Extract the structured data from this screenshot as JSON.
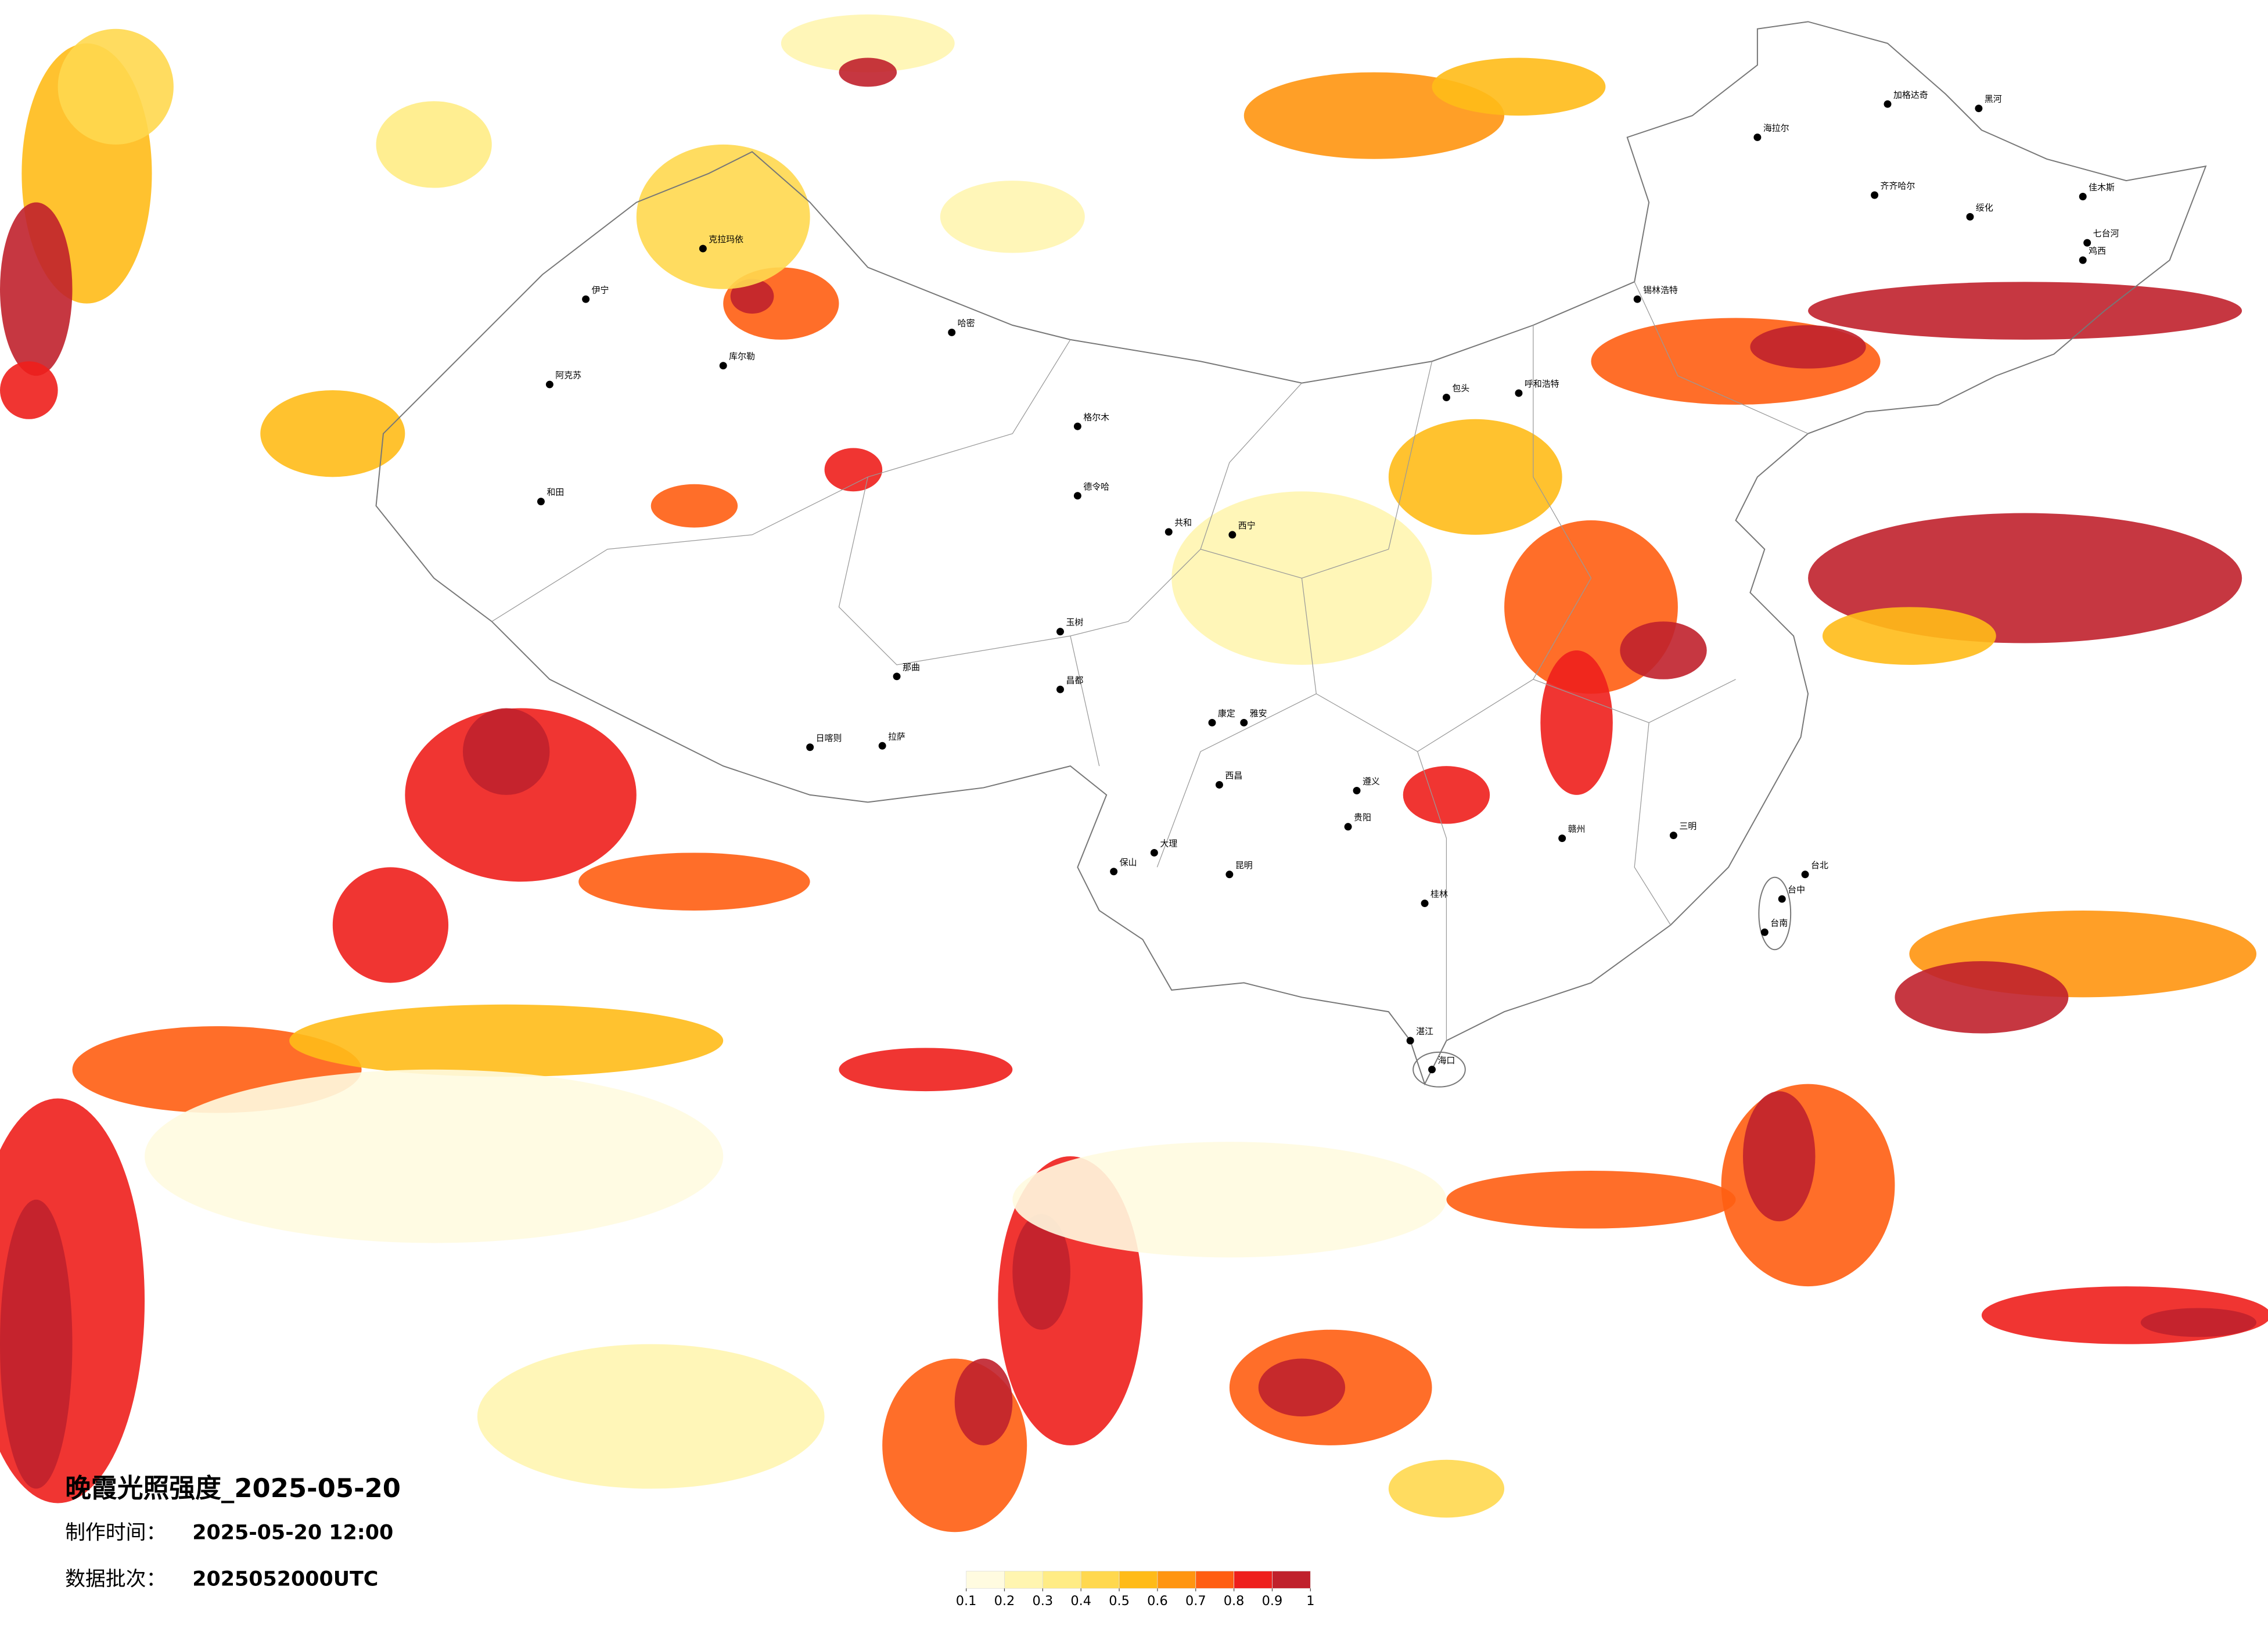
{
  "header": {
    "title": "晚霞光照强度_2025-05-20",
    "made_label": "制作时间：",
    "made_time": "2025-05-20 12:00",
    "batch_label": "数据批次：",
    "batch": "2025052000UTC"
  },
  "legend": {
    "colors": [
      "#fffbe0",
      "#fff5b0",
      "#ffec85",
      "#ffd84f",
      "#ffbb18",
      "#ff9510",
      "#ff5e12",
      "#ee1f1c",
      "#c0212c"
    ],
    "ticks": [
      0.1,
      0.2,
      0.3,
      0.4,
      0.5,
      0.6,
      0.7,
      0.8,
      0.9,
      1
    ]
  },
  "cities": [
    {
      "name": "伊宁"
    },
    {
      "name": "阿克苏"
    },
    {
      "name": "和田"
    },
    {
      "name": "库尔勒"
    },
    {
      "name": "哈密"
    },
    {
      "name": "克拉玛依"
    },
    {
      "name": "格尔木"
    },
    {
      "name": "德令哈"
    },
    {
      "name": "拉萨"
    },
    {
      "name": "日喀则"
    },
    {
      "name": "昌都"
    },
    {
      "name": "玉树"
    },
    {
      "name": "那曲"
    },
    {
      "name": "加格达奇"
    },
    {
      "name": "黑河"
    },
    {
      "name": "海拉尔"
    },
    {
      "name": "齐齐哈尔"
    },
    {
      "name": "绥化"
    },
    {
      "name": "佳木斯"
    },
    {
      "name": "七台河"
    },
    {
      "name": "鸡西"
    },
    {
      "name": "锡林浩特"
    },
    {
      "name": "呼和浩特"
    },
    {
      "name": "包头"
    },
    {
      "name": "西宁"
    },
    {
      "name": "共和"
    },
    {
      "name": "康定"
    },
    {
      "name": "雅安"
    },
    {
      "name": "西昌"
    },
    {
      "name": "大理"
    },
    {
      "name": "保山"
    },
    {
      "name": "昆明"
    },
    {
      "name": "贵阳"
    },
    {
      "name": "遵义"
    },
    {
      "name": "桂林"
    },
    {
      "name": "赣州"
    },
    {
      "name": "三明"
    },
    {
      "name": "台北"
    },
    {
      "name": "台中"
    },
    {
      "name": "台南"
    },
    {
      "name": "湛江"
    },
    {
      "name": "海口"
    }
  ]
}
